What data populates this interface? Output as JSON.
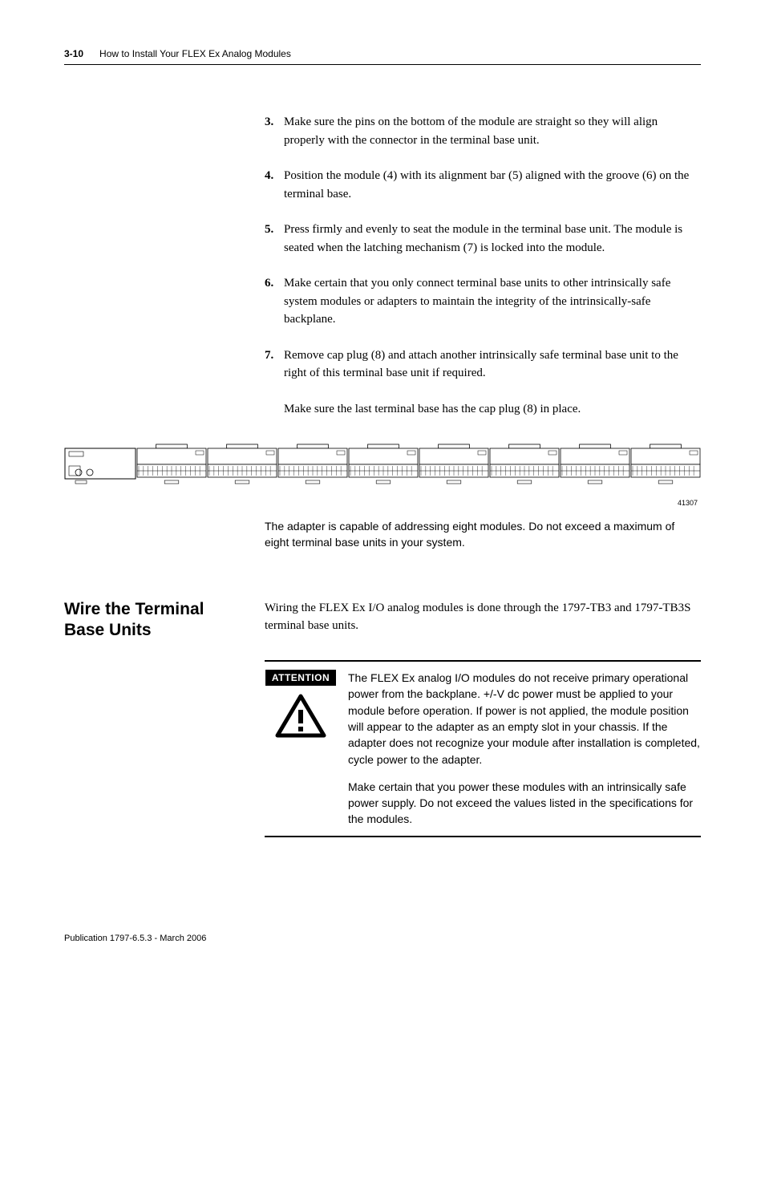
{
  "header": {
    "page_number": "3-10",
    "title": "How to Install Your FLEX Ex Analog Modules"
  },
  "steps": [
    {
      "num": "3.",
      "text": "Make sure the pins on the bottom of the module are straight so they will align properly with the connector in the terminal base unit."
    },
    {
      "num": "4.",
      "text": "Position the module (4) with its alignment bar (5) aligned with the groove (6) on the terminal base."
    },
    {
      "num": "5.",
      "text": "Press firmly and evenly to seat the module in the terminal base unit. The module is seated when the latching mechanism (7) is locked into the module."
    },
    {
      "num": "6.",
      "text": "Make certain that you only connect terminal base units to other intrinsically safe system modules or adapters to maintain the integrity of the intrinsically-safe backplane."
    },
    {
      "num": "7.",
      "text": "Remove cap plug (8) and attach another intrinsically safe terminal base unit to the right of this terminal base unit if required."
    }
  ],
  "post_step_note": "Make sure the last terminal base has the cap plug (8) in place.",
  "diagram": {
    "label": "41307",
    "module_count": 8,
    "colors": {
      "stroke": "#000000",
      "fill": "#ffffff",
      "hatch": "#555555"
    }
  },
  "caption": "The adapter is capable of addressing eight modules. Do not exceed a maximum of eight terminal base units in your system.",
  "section": {
    "heading": "Wire the Terminal Base Units",
    "body": "Wiring the FLEX Ex I/O analog modules is done through the 1797-TB3 and 1797-TB3S terminal base units."
  },
  "attention": {
    "label": "ATTENTION",
    "icon_color": "#000000",
    "paragraphs": [
      "The FLEX Ex analog I/O modules do not receive primary operational power from the backplane. +/-V dc power must be applied to your module before operation. If power is not applied, the module position will appear to the adapter as an empty slot in your chassis. If the adapter does not recognize your module after installation is completed, cycle power to the adapter.",
      "Make certain that you power these modules with an intrinsically safe power supply. Do not exceed the values listed in the specifications for the modules."
    ]
  },
  "footer": "Publication 1797-6.5.3 - March 2006"
}
